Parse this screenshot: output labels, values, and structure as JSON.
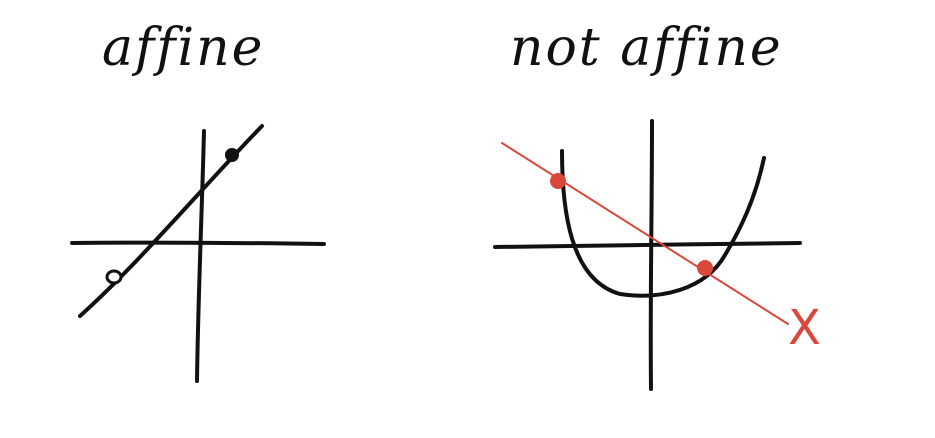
{
  "left_panel": {
    "title": "affine"
  },
  "right_panel": {
    "title": "not affine",
    "marker_label": "X"
  },
  "colors": {
    "ink": "#111111",
    "accent": "#d9483b"
  }
}
